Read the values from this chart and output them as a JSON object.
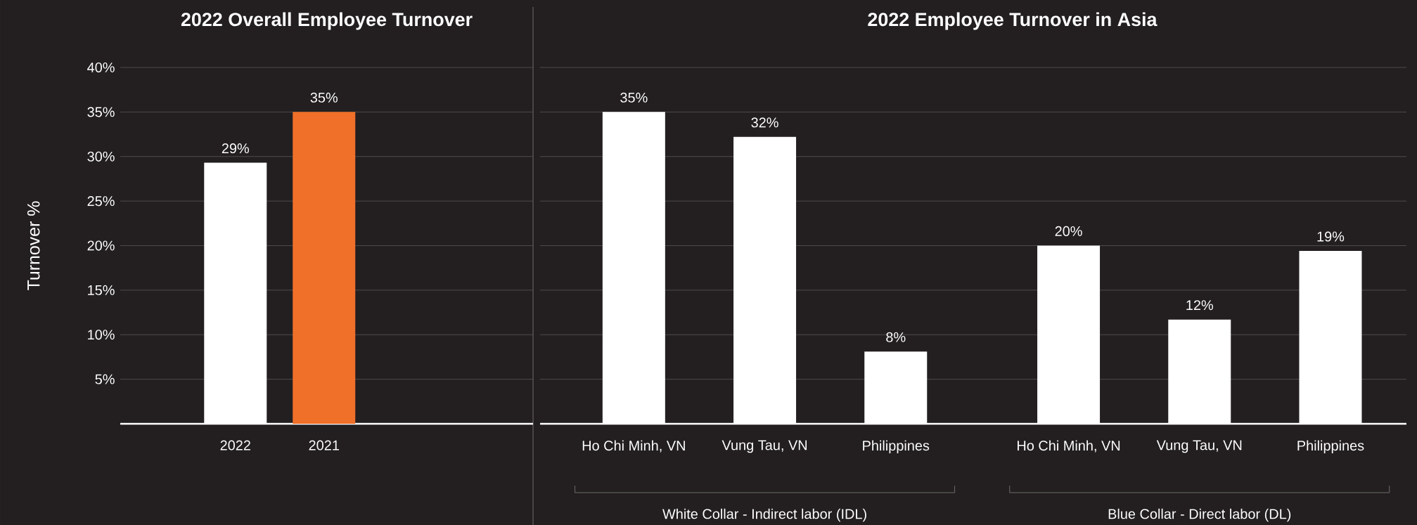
{
  "chart_data": [
    {
      "type": "bar",
      "title": "2022 Overall Employee Turnover",
      "ylabel": "Turnover %",
      "categories": [
        "2022",
        "2021"
      ],
      "values": [
        29.3,
        35
      ],
      "colors": [
        "#ffffff",
        "#f07029"
      ],
      "value_labels": [
        "29%",
        "35%"
      ],
      "ylim": [
        0,
        40
      ],
      "yticks": [
        {
          "value": 5,
          "label": "5%"
        },
        {
          "value": 10,
          "label": "10%"
        },
        {
          "value": 15,
          "label": "15%"
        },
        {
          "value": 20,
          "label": "20%"
        },
        {
          "value": 25,
          "label": "25%"
        },
        {
          "value": 30,
          "label": "30%"
        },
        {
          "value": 35,
          "label": "35%"
        },
        {
          "value": 40,
          "label": "40%"
        }
      ],
      "grid": "y"
    },
    {
      "type": "bar",
      "title": "2022 Employee Turnover in Asia",
      "categories": [
        "Ho Chi Minh, VN",
        "Vung Tau, VN",
        "Philippines",
        "Ho Chi Minh, VN",
        "Vung Tau, VN",
        "Philippines"
      ],
      "values": [
        35,
        32.2,
        8.1,
        20,
        11.7,
        19.4
      ],
      "color": "#ffffff",
      "value_labels": [
        "35%",
        "32%",
        "8%",
        "20%",
        "12%",
        "19%"
      ],
      "ylim": [
        0,
        40
      ],
      "yticks": [
        5,
        10,
        15,
        20,
        25,
        30,
        35,
        40
      ],
      "tick_labels": "x",
      "grid": "y",
      "annotations": [
        "White Collar - Indirect labor (IDL)",
        "Blue Collar - Direct labor (DL)"
      ]
    }
  ]
}
